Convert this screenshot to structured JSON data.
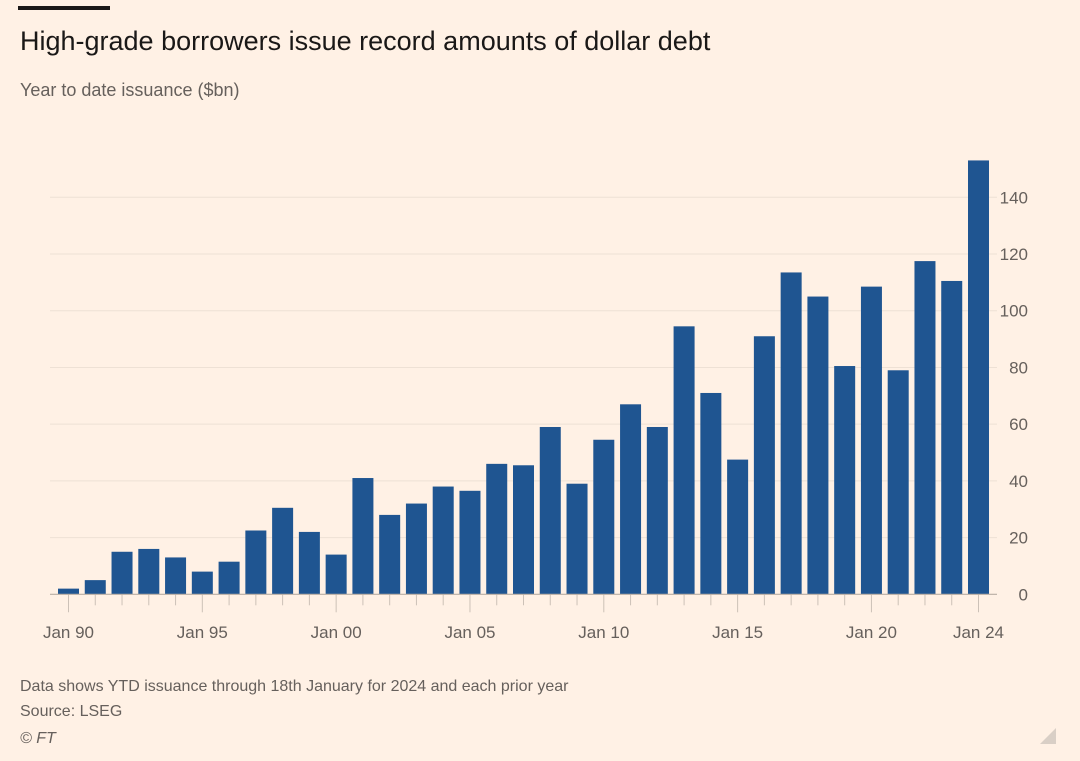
{
  "title": "High-grade borrowers issue record amounts of dollar debt",
  "subtitle": "Year to date issuance ($bn)",
  "footer": {
    "note": "Data shows YTD issuance through 18th January for 2024 and each prior year",
    "source": "Source: LSEG",
    "credit": "© FT"
  },
  "colors": {
    "bar": "#1f5591",
    "background": "#fff1e5",
    "grid": "#eee1d5"
  },
  "chart_data": {
    "type": "bar",
    "title": "High-grade borrowers issue record amounts of dollar debt",
    "ylabel": "Year to date issuance ($bn)",
    "xlabel": "",
    "ylim": [
      0,
      150
    ],
    "y_axis_position": "right",
    "grid": true,
    "yticks": [
      0,
      20,
      40,
      60,
      80,
      100,
      120,
      140
    ],
    "xtick_labels": [
      {
        "year": 1990,
        "label": "Jan 90"
      },
      {
        "year": 1995,
        "label": "Jan 95"
      },
      {
        "year": 2000,
        "label": "Jan 00"
      },
      {
        "year": 2005,
        "label": "Jan 05"
      },
      {
        "year": 2010,
        "label": "Jan 10"
      },
      {
        "year": 2015,
        "label": "Jan 15"
      },
      {
        "year": 2020,
        "label": "Jan 20"
      },
      {
        "year": 2024,
        "label": "Jan 24"
      }
    ],
    "categories": [
      1990,
      1991,
      1992,
      1993,
      1994,
      1995,
      1996,
      1997,
      1998,
      1999,
      2000,
      2001,
      2002,
      2003,
      2004,
      2005,
      2006,
      2007,
      2008,
      2009,
      2010,
      2011,
      2012,
      2013,
      2014,
      2015,
      2016,
      2017,
      2018,
      2019,
      2020,
      2021,
      2022,
      2023,
      2024
    ],
    "values": [
      2,
      5,
      15,
      16,
      13,
      8,
      11.5,
      22.5,
      30.5,
      22,
      14,
      41,
      28,
      32,
      38,
      36.5,
      46,
      45.5,
      59,
      39,
      54.5,
      67,
      59,
      94.5,
      71,
      47.5,
      91,
      113.5,
      105,
      80.5,
      108.5,
      79,
      117.5,
      110.5,
      153
    ]
  }
}
